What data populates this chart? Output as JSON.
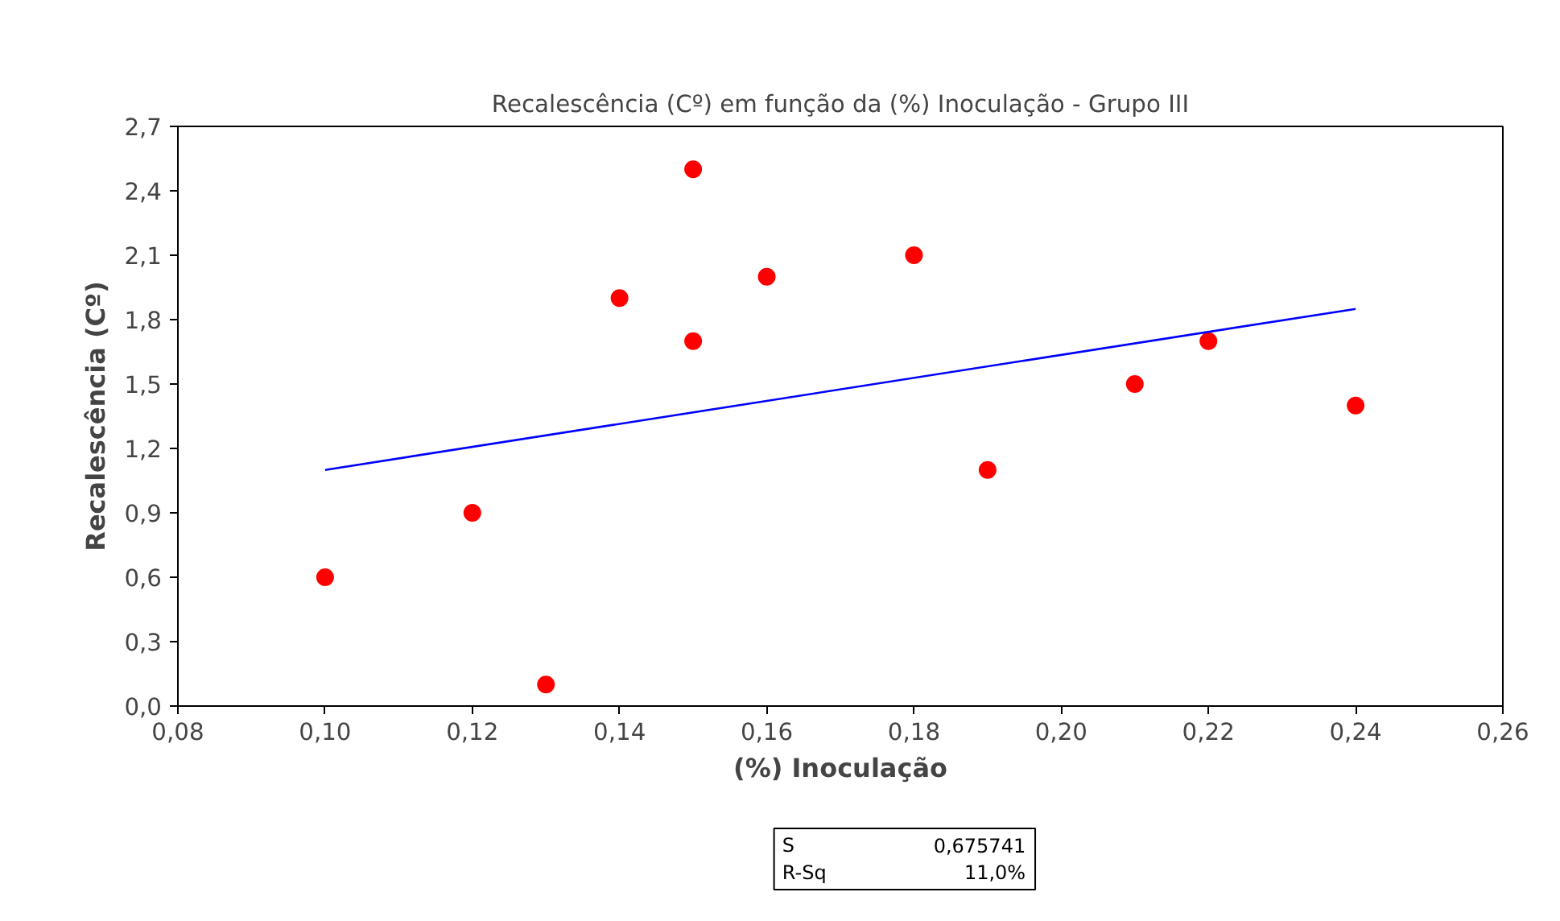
{
  "chart_data": {
    "type": "scatter",
    "title": "Recalescência (Cº) em função da (%) Inoculação - Grupo III",
    "xlabel": "(%) Inoculação",
    "ylabel": "Recalescência (Cº)",
    "series": [
      {
        "color": "#ff0000",
        "marker": "circle",
        "x": [
          0.1,
          0.12,
          0.13,
          0.14,
          0.15,
          0.15,
          0.16,
          0.18,
          0.19,
          0.21,
          0.22,
          0.24
        ],
        "values": [
          0.6,
          0.9,
          0.1,
          1.9,
          2.5,
          1.7,
          2.0,
          2.1,
          1.1,
          1.5,
          1.7,
          1.4
        ]
      },
      {
        "type": "line",
        "color": "#0000ff",
        "line_style": "solid",
        "x": [
          0.1,
          0.24
        ],
        "values": [
          1.1,
          1.85
        ]
      }
    ],
    "xlim": [
      0.08,
      0.26
    ],
    "xticks": [
      {
        "value": 0.08,
        "label": "0,08"
      },
      {
        "value": 0.1,
        "label": "0,10"
      },
      {
        "value": 0.12,
        "label": "0,12"
      },
      {
        "value": 0.14,
        "label": "0,14"
      },
      {
        "value": 0.16,
        "label": "0,16"
      },
      {
        "value": 0.18,
        "label": "0,18"
      },
      {
        "value": 0.2,
        "label": "0,20"
      },
      {
        "value": 0.22,
        "label": "0,22"
      },
      {
        "value": 0.24,
        "label": "0,24"
      },
      {
        "value": 0.26,
        "label": "0,26"
      }
    ],
    "ylim": [
      0.0,
      2.7
    ],
    "yticks": [
      {
        "value": 0.0,
        "label": "0,0"
      },
      {
        "value": 0.3,
        "label": "0,3"
      },
      {
        "value": 0.6,
        "label": "0,6"
      },
      {
        "value": 0.9,
        "label": "0,9"
      },
      {
        "value": 1.2,
        "label": "1,2"
      },
      {
        "value": 1.5,
        "label": "1,5"
      },
      {
        "value": 1.8,
        "label": "1,8"
      },
      {
        "value": 2.1,
        "label": "2,1"
      },
      {
        "value": 2.4,
        "label": "2,4"
      },
      {
        "value": 2.7,
        "label": "2,7"
      }
    ],
    "annotations": [
      "S",
      "0,675741",
      "R-Sq",
      "11,0%"
    ],
    "grid": false
  }
}
